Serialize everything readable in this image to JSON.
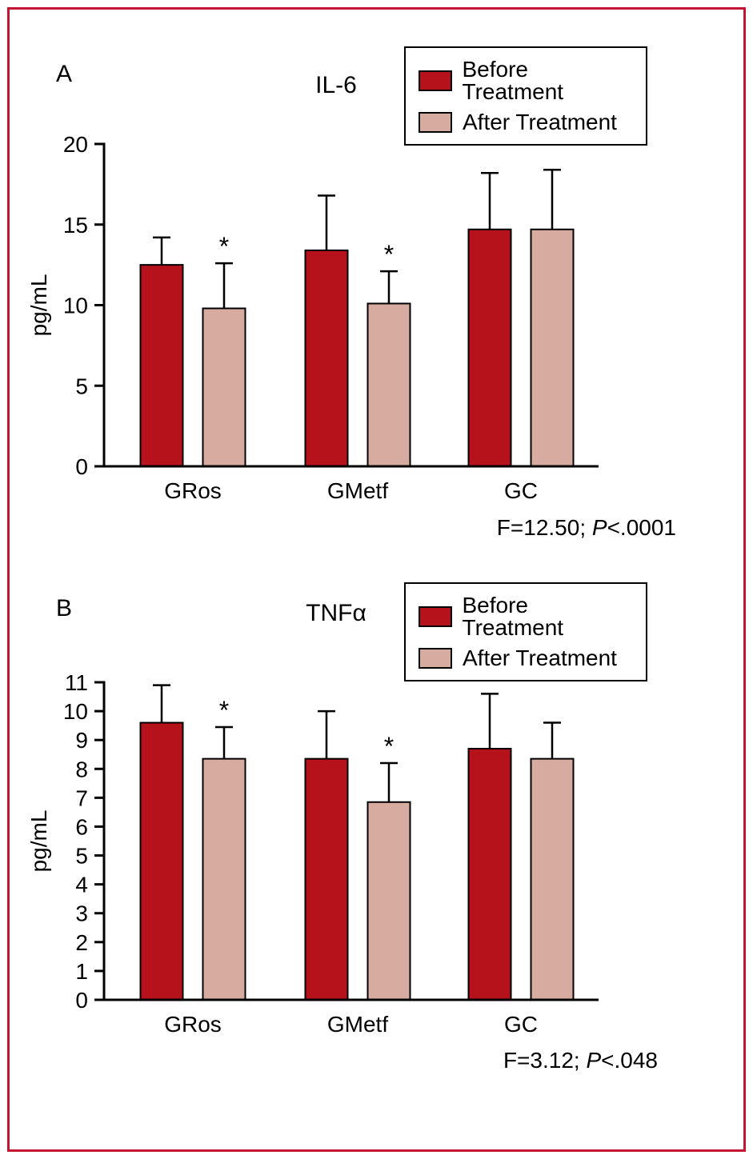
{
  "figure": {
    "border_color": "#c41431",
    "axis_color": "#000000"
  },
  "chart_data": [
    {
      "type": "bar",
      "panel_label": "A",
      "title": "IL-6",
      "ylabel": "pg/mL",
      "ylim": [
        0,
        20
      ],
      "ytick_step": 5,
      "grid": false,
      "legend_position": "top-right",
      "categories": [
        "GRos",
        "GMetf",
        "GC"
      ],
      "series": [
        {
          "name": "Before Treatment",
          "color": "#b5121b",
          "values": [
            12.5,
            13.4,
            14.7
          ],
          "errors_up": [
            1.7,
            3.4,
            3.5
          ],
          "significant": [
            false,
            false,
            false
          ]
        },
        {
          "name": "After Treatment",
          "color": "#d8aba0",
          "values": [
            9.8,
            10.1,
            14.7
          ],
          "errors_up": [
            2.8,
            2.0,
            3.7
          ],
          "significant": [
            true,
            true,
            false
          ]
        }
      ],
      "stat": {
        "prefix": "F=12.50; ",
        "p": "P",
        "suffix": "<.0001"
      }
    },
    {
      "type": "bar",
      "panel_label": "B",
      "title": "TNFα",
      "ylabel": "pg/mL",
      "ylim": [
        0,
        11
      ],
      "ytick_step": 1,
      "grid": false,
      "legend_position": "top-right",
      "categories": [
        "GRos",
        "GMetf",
        "GC"
      ],
      "series": [
        {
          "name": "Before Treatment",
          "color": "#b5121b",
          "values": [
            9.6,
            8.35,
            8.7
          ],
          "errors_up": [
            1.3,
            1.65,
            1.9
          ],
          "significant": [
            false,
            false,
            false
          ]
        },
        {
          "name": "After Treatment",
          "color": "#d8aba0",
          "values": [
            8.35,
            6.85,
            8.35
          ],
          "errors_up": [
            1.1,
            1.35,
            1.25
          ],
          "significant": [
            true,
            true,
            false
          ]
        }
      ],
      "stat": {
        "prefix": "F=3.12; ",
        "p": "P",
        "suffix": "<.048"
      }
    }
  ]
}
